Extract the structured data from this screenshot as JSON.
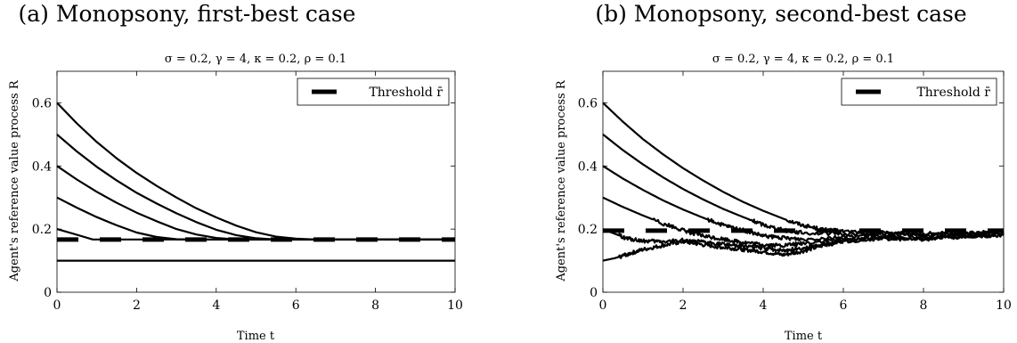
{
  "panels": [
    {
      "caption": "(a) Monopsony, first-best case",
      "chart_data": {
        "type": "line",
        "title": "σ = 0.2, γ = 4, κ = 0.2, ρ = 0.1",
        "xlabel": "Time t",
        "ylabel": "Agent's reference value process R",
        "xlim": [
          0,
          10
        ],
        "ylim": [
          0,
          0.7
        ],
        "xticks": [
          "0",
          "2",
          "4",
          "6",
          "8",
          "10"
        ],
        "yticks": [
          "0",
          "0.2",
          "0.4",
          "0.6"
        ],
        "legend": {
          "label": "Threshold r̄",
          "placement": "top-right"
        },
        "threshold": 0.167,
        "series": [
          {
            "start": 0.6,
            "x": [
              0,
              0.5,
              1,
              1.5,
              2,
              2.5,
              3,
              3.5,
              4,
              4.5,
              5,
              5.5,
              6,
              6.5,
              7,
              8,
              9,
              10
            ],
            "y": [
              0.6,
              0.535,
              0.476,
              0.424,
              0.378,
              0.337,
              0.3,
              0.266,
              0.237,
              0.211,
              0.19,
              0.176,
              0.17,
              0.167,
              0.167,
              0.167,
              0.167,
              0.167
            ]
          },
          {
            "start": 0.5,
            "x": [
              0,
              0.5,
              1,
              1.5,
              2,
              2.5,
              3,
              3.5,
              4,
              4.5,
              5,
              5.5,
              6,
              7,
              8,
              9,
              10
            ],
            "y": [
              0.5,
              0.446,
              0.397,
              0.354,
              0.315,
              0.281,
              0.25,
              0.222,
              0.198,
              0.181,
              0.171,
              0.167,
              0.167,
              0.167,
              0.167,
              0.167,
              0.167
            ]
          },
          {
            "start": 0.4,
            "x": [
              0,
              0.5,
              1,
              1.5,
              2,
              2.5,
              3,
              3.5,
              4,
              4.5,
              5,
              6,
              7,
              8,
              9,
              10
            ],
            "y": [
              0.4,
              0.357,
              0.318,
              0.283,
              0.252,
              0.225,
              0.2,
              0.183,
              0.172,
              0.167,
              0.167,
              0.167,
              0.167,
              0.167,
              0.167,
              0.167
            ]
          },
          {
            "start": 0.3,
            "x": [
              0,
              0.5,
              1,
              1.5,
              2,
              2.5,
              3,
              3.5,
              4,
              5,
              6,
              7,
              8,
              9,
              10
            ],
            "y": [
              0.3,
              0.268,
              0.238,
              0.212,
              0.189,
              0.175,
              0.168,
              0.167,
              0.167,
              0.167,
              0.167,
              0.167,
              0.167,
              0.167,
              0.167
            ]
          },
          {
            "start": 0.2,
            "x": [
              0,
              0.5,
              0.9,
              1,
              2,
              4,
              6,
              8,
              10
            ],
            "y": [
              0.2,
              0.182,
              0.167,
              0.167,
              0.167,
              0.167,
              0.167,
              0.167,
              0.167
            ]
          },
          {
            "start": 0.1,
            "x": [
              0,
              10
            ],
            "y": [
              0.1,
              0.1
            ]
          }
        ]
      }
    },
    {
      "caption": "(b) Monopsony, second-best case",
      "chart_data": {
        "type": "line",
        "title": "σ = 0.2, γ = 4, κ = 0.2, ρ = 0.1",
        "xlabel": "Time t",
        "ylabel": "Agent's reference value process R",
        "xlim": [
          0,
          10
        ],
        "ylim": [
          0,
          0.7
        ],
        "xticks": [
          "0",
          "2",
          "4",
          "6",
          "8",
          "10"
        ],
        "yticks": [
          "0",
          "0.2",
          "0.4",
          "0.6"
        ],
        "legend": {
          "label": "Threshold r̄",
          "placement": "top-right"
        },
        "threshold": 0.195,
        "series": [
          {
            "start": 0.6,
            "x": [
              0,
              0.5,
              1,
              1.5,
              2,
              2.5,
              3,
              3.5,
              4,
              4.5,
              5,
              5.5,
              6,
              7,
              8,
              9,
              10
            ],
            "y": [
              0.6,
              0.54,
              0.485,
              0.437,
              0.393,
              0.354,
              0.318,
              0.286,
              0.258,
              0.233,
              0.212,
              0.198,
              0.193,
              0.19,
              0.185,
              0.188,
              0.19
            ]
          },
          {
            "start": 0.5,
            "x": [
              0,
              0.5,
              1,
              1.5,
              2,
              2.5,
              3,
              3.5,
              4,
              4.5,
              5,
              6,
              7,
              8,
              9,
              10
            ],
            "y": [
              0.5,
              0.45,
              0.405,
              0.364,
              0.327,
              0.294,
              0.264,
              0.238,
              0.214,
              0.197,
              0.188,
              0.185,
              0.187,
              0.183,
              0.186,
              0.188
            ]
          },
          {
            "start": 0.4,
            "x": [
              0,
              0.5,
              1,
              1.5,
              2,
              2.5,
              3,
              3.5,
              4,
              4.5,
              5,
              6,
              7,
              8,
              9,
              10
            ],
            "y": [
              0.4,
              0.36,
              0.324,
              0.291,
              0.262,
              0.236,
              0.212,
              0.196,
              0.178,
              0.172,
              0.168,
              0.176,
              0.182,
              0.179,
              0.184,
              0.186
            ]
          },
          {
            "start": 0.3,
            "x": [
              0,
              0.5,
              1,
              1.5,
              2,
              2.5,
              3,
              3.5,
              4,
              4.5,
              5,
              6,
              7,
              8,
              9,
              10
            ],
            "y": [
              0.3,
              0.27,
              0.243,
              0.218,
              0.196,
              0.178,
              0.168,
              0.158,
              0.15,
              0.148,
              0.155,
              0.168,
              0.176,
              0.172,
              0.18,
              0.183
            ]
          },
          {
            "start": 0.2,
            "x": [
              0,
              0.3,
              0.6,
              1,
              1.5,
              2,
              2.5,
              3,
              3.5,
              4,
              4.5,
              5,
              5.5,
              6,
              7,
              8,
              9,
              10
            ],
            "y": [
              0.2,
              0.185,
              0.17,
              0.162,
              0.16,
              0.165,
              0.158,
              0.152,
              0.147,
              0.14,
              0.132,
              0.14,
              0.152,
              0.165,
              0.172,
              0.17,
              0.178,
              0.182
            ]
          },
          {
            "start": 0.1,
            "x": [
              0,
              0.3,
              0.6,
              1,
              1.5,
              2,
              2.5,
              3,
              3.5,
              4,
              4.5,
              5,
              5.5,
              6,
              7,
              8,
              9,
              10
            ],
            "y": [
              0.1,
              0.108,
              0.12,
              0.135,
              0.148,
              0.16,
              0.15,
              0.142,
              0.135,
              0.128,
              0.118,
              0.13,
              0.148,
              0.162,
              0.17,
              0.168,
              0.176,
              0.18
            ]
          }
        ]
      }
    }
  ]
}
